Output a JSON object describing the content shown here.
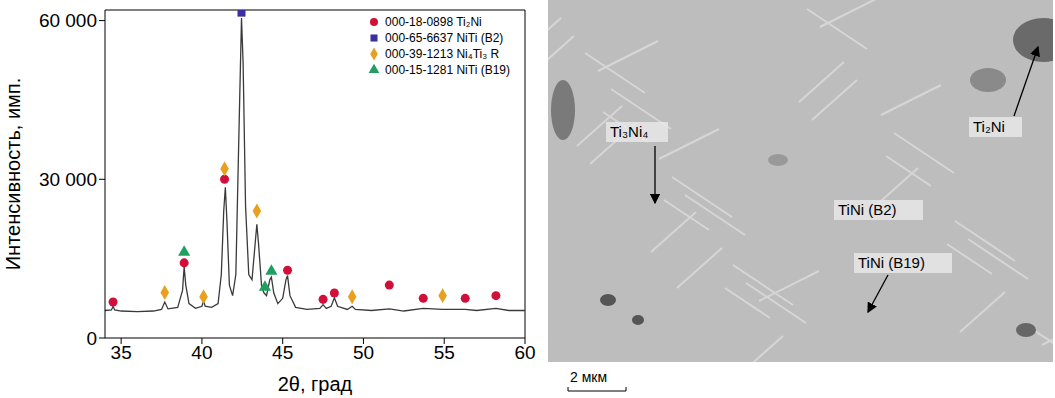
{
  "chart_data": {
    "type": "line",
    "xlabel": "2θ, град",
    "ylabel": "Интенсивность, имп.",
    "xlim": [
      34,
      60
    ],
    "xticks": [
      35,
      40,
      45,
      50,
      55,
      60
    ],
    "ylim": [
      0,
      62000
    ],
    "yticks": [
      0,
      {
        "value": 30000,
        "label": "30 000"
      },
      {
        "value": 60000,
        "label": "60 000"
      }
    ],
    "grid": false,
    "legend": "upper right",
    "series": [
      {
        "type": "line",
        "color": "#3a3a3a",
        "line_style": "solid",
        "x": [
          34.0,
          34.4,
          34.5,
          34.6,
          35.0,
          36.0,
          37.0,
          37.5,
          37.7,
          37.9,
          38.5,
          38.8,
          38.9,
          39.0,
          39.2,
          39.6,
          40.0,
          40.1,
          40.2,
          40.6,
          41.0,
          41.2,
          41.35,
          41.45,
          41.55,
          41.7,
          41.9,
          42.1,
          42.3,
          42.45,
          42.55,
          42.7,
          42.9,
          43.1,
          43.3,
          43.4,
          43.5,
          43.7,
          43.85,
          44.0,
          44.2,
          44.3,
          44.45,
          44.7,
          45.0,
          45.2,
          45.3,
          45.45,
          45.8,
          46.5,
          47.3,
          47.5,
          47.7,
          48.0,
          48.2,
          48.4,
          49.0,
          49.3,
          49.5,
          50.5,
          51.6,
          52.5,
          53.7,
          54.9,
          56.3,
          57.0,
          58.2,
          59.0,
          60.0
        ],
        "values": [
          5200,
          5300,
          6000,
          5300,
          5100,
          5000,
          5100,
          5400,
          6800,
          5500,
          5800,
          9000,
          13500,
          10000,
          6500,
          5600,
          6000,
          7000,
          6000,
          5800,
          6500,
          12000,
          24000,
          28500,
          22000,
          10000,
          8000,
          12000,
          40000,
          60500,
          52000,
          25000,
          12000,
          11000,
          18000,
          21500,
          18000,
          9500,
          8500,
          8000,
          11000,
          11500,
          8500,
          6500,
          7500,
          11000,
          11800,
          8000,
          5800,
          5400,
          5600,
          6300,
          5600,
          6000,
          7600,
          6000,
          5400,
          6000,
          5400,
          5200,
          5500,
          5100,
          5600,
          5400,
          5400,
          5200,
          5600,
          5200,
          5200
        ]
      },
      {
        "type": "scatter",
        "name": "000-18-0898 Ti₂Ni",
        "color": "#d0103a",
        "marker": "circle",
        "x": [
          34.5,
          38.9,
          41.4,
          45.3,
          47.5,
          48.2,
          51.6,
          53.7,
          56.3,
          58.2
        ],
        "values": [
          6800,
          14200,
          30000,
          12800,
          7300,
          8500,
          10000,
          7500,
          7500,
          8000
        ]
      },
      {
        "type": "scatter",
        "name": "000-65-6637 NiTi (B2)",
        "color": "#3a2fa0",
        "marker": "square",
        "x": [
          42.45
        ],
        "values": [
          61500
        ]
      },
      {
        "type": "scatter",
        "name": "000-39-1213 Ni₄Ti₃ R",
        "color": "#e8a020",
        "marker": "diamond",
        "x": [
          37.7,
          40.1,
          41.4,
          43.4,
          49.3,
          54.9
        ],
        "values": [
          8600,
          7800,
          32000,
          24000,
          7800,
          8000
        ]
      },
      {
        "type": "scatter",
        "name": "000-15-1281 NiTi (B19)",
        "color": "#20a060",
        "marker": "triangle",
        "x": [
          38.9,
          43.9,
          44.3
        ],
        "values": [
          16200,
          9600,
          12600
        ]
      }
    ]
  },
  "micrograph": {
    "labels": [
      "Ti₃Ni₄",
      "Ti₂Ni",
      "TiNi (B2)",
      "TiNi (B19)"
    ],
    "scale_bar": "2 мкм"
  }
}
